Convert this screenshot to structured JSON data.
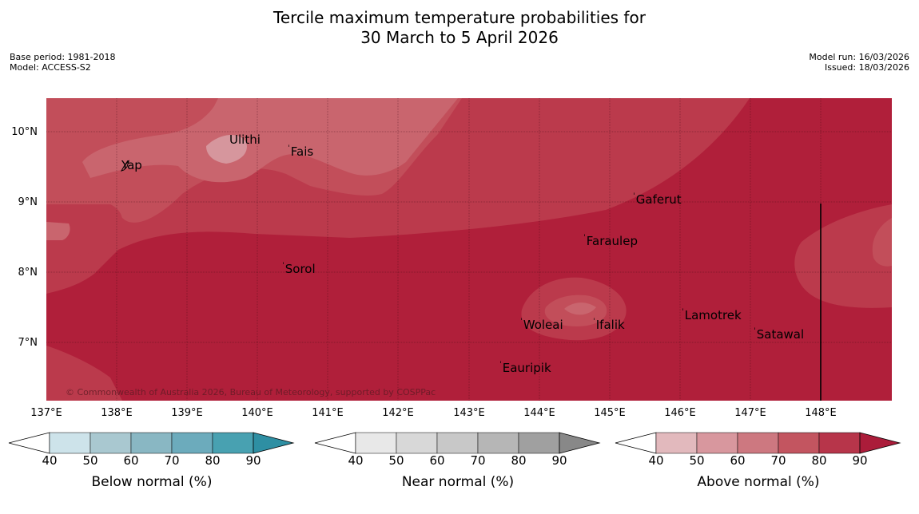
{
  "title": {
    "line1": "Tercile maximum temperature probabilities for",
    "line2": "30 March to 5 April 2026"
  },
  "meta": {
    "base_period": "Base period: 1981-2018",
    "model": "Model: ACCESS-S2",
    "model_run": "Model run: 16/03/2026",
    "issued": "Issued: 18/03/2026"
  },
  "map": {
    "lat_labels": [
      "10°N",
      "9°N",
      "8°N",
      "7°N"
    ],
    "lon_labels": [
      "137°E",
      "138°E",
      "139°E",
      "140°E",
      "141°E",
      "142°E",
      "143°E",
      "144°E",
      "145°E",
      "146°E",
      "147°E",
      "148°E"
    ],
    "places": {
      "yap": "Yap",
      "ulithi": "Ulithi",
      "fais": "Fais",
      "gaferut": "Gaferut",
      "faraulep": "Faraulep",
      "sorol": "Sorol",
      "woleai": "Woleai",
      "ifalik": "Ifalik",
      "lamotrek": "Lamotrek",
      "satawal": "Satawal",
      "eauripik": "Eauripik"
    },
    "copyright": "© Commonwealth of Australia 2026, Bureau of Meteorology, supported by COSPPac"
  },
  "colorbars": {
    "ticks": [
      "40",
      "50",
      "60",
      "70",
      "80",
      "90"
    ],
    "below": {
      "label": "Below normal (%)",
      "colors": [
        "#cde3ea",
        "#a9c8d0",
        "#89b7c3",
        "#6cabbc",
        "#48a1b1",
        "#2e8fa3"
      ]
    },
    "near": {
      "label": "Near normal (%)",
      "colors": [
        "#e8e8e8",
        "#d8d8d8",
        "#c8c8c8",
        "#b6b6b6",
        "#a0a0a0",
        "#888888"
      ]
    },
    "above": {
      "label": "Above normal (%)",
      "colors": [
        "#e2b9bd",
        "#d8979e",
        "#cd7880",
        "#c35560",
        "#b7354a",
        "#ab1c3a"
      ]
    }
  },
  "map_colors": {
    "c90": "#b01f3a",
    "c80": "#bb3a4c",
    "c70": "#c24e5a",
    "c60": "#c9656e",
    "c50": "#d6969d"
  }
}
